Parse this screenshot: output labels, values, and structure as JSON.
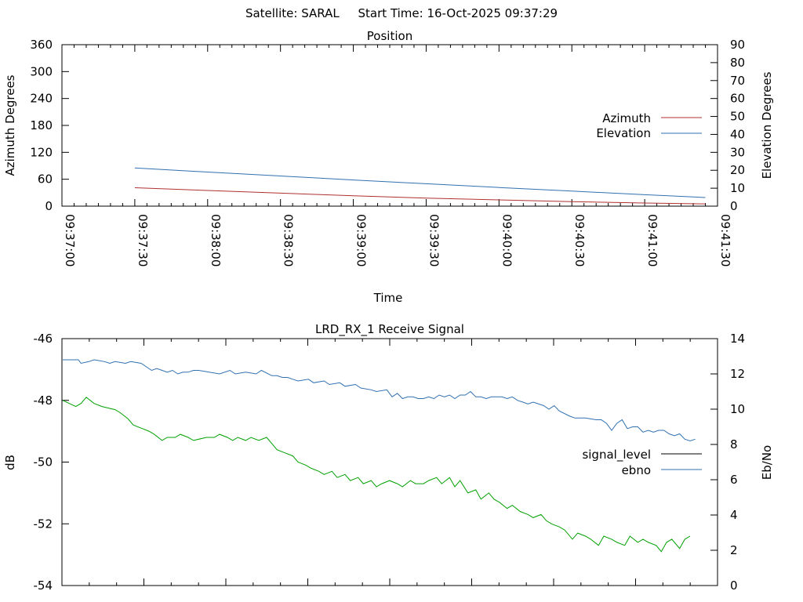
{
  "header": {
    "title": "Satellite: SARAL     Start Time: 16-Oct-2025 09:37:29"
  },
  "colors": {
    "azimuth": "#b03030",
    "elevation": "#3070b0",
    "signal_level": "#000000",
    "signal_line_drawn": "#00a000",
    "ebno": "#3070b0",
    "axis": "#000000"
  },
  "chart_data": [
    {
      "type": "line",
      "title": "Position",
      "xlabel": "Time",
      "ylabel": "Azimuth Degrees",
      "y2label": "Elevation Degrees",
      "xlim": [
        "09:37:00",
        "09:41:30"
      ],
      "ylim": [
        0,
        360
      ],
      "y2lim": [
        0,
        90
      ],
      "x_ticks": [
        "09:37:00",
        "09:37:30",
        "09:38:00",
        "09:38:30",
        "09:39:00",
        "09:39:30",
        "09:40:00",
        "09:40:30",
        "09:41:00",
        "09:41:30"
      ],
      "y_ticks": [
        "0",
        "60",
        "120",
        "180",
        "240",
        "300",
        "360"
      ],
      "y2_ticks": [
        "0",
        "10",
        "20",
        "30",
        "40",
        "50",
        "60",
        "70",
        "80",
        "90"
      ],
      "legend_position": "right",
      "series": [
        {
          "name": "Azimuth",
          "axis": "y",
          "x": [
            "09:37:30",
            "09:38:00",
            "09:38:30",
            "09:39:00",
            "09:39:30",
            "09:40:00",
            "09:40:30",
            "09:41:00",
            "09:41:25"
          ],
          "values": [
            41,
            35,
            29,
            23,
            18,
            14,
            10,
            7,
            5
          ]
        },
        {
          "name": "Elevation",
          "axis": "y2",
          "x": [
            "09:37:30",
            "09:38:00",
            "09:38:30",
            "09:39:00",
            "09:39:30",
            "09:40:00",
            "09:40:30",
            "09:41:00",
            "09:41:25"
          ],
          "values": [
            21.3,
            19.0,
            16.8,
            14.6,
            12.5,
            10.4,
            8.4,
            6.4,
            4.8
          ]
        }
      ]
    },
    {
      "type": "line",
      "title": "LRD_RX_1 Receive Signal",
      "ylabel": "dB",
      "y2label": "Eb/No",
      "xlim": [
        0,
        240
      ],
      "ylim": [
        -54,
        -46
      ],
      "y2lim": [
        0,
        14
      ],
      "y_ticks": [
        "-46",
        "-48",
        "-50",
        "-52",
        "-54"
      ],
      "y2_ticks": [
        "0",
        "2",
        "4",
        "6",
        "8",
        "10",
        "12",
        "14"
      ],
      "legend_position": "right",
      "series": [
        {
          "name": "signal_level",
          "axis": "y",
          "x": [
            0,
            5,
            7,
            9,
            12,
            15,
            20,
            22,
            25,
            27,
            30,
            33,
            35,
            38,
            40,
            43,
            45,
            48,
            50,
            55,
            58,
            60,
            63,
            65,
            67,
            70,
            72,
            75,
            78,
            80,
            82,
            85,
            88,
            90,
            93,
            95,
            98,
            100,
            103,
            105,
            108,
            110,
            113,
            115,
            118,
            120,
            122,
            125,
            128,
            130,
            133,
            135,
            138,
            140,
            143,
            145,
            148,
            150,
            152,
            155,
            158,
            160,
            163,
            165,
            167,
            170,
            172,
            175,
            178,
            180,
            183,
            185,
            187,
            190,
            192,
            195,
            197,
            200,
            202,
            205,
            207,
            210,
            212,
            215,
            217,
            220,
            222,
            224,
            227,
            229,
            231,
            233,
            236,
            238,
            240
          ],
          "values": [
            -48.0,
            -48.2,
            -48.1,
            -47.9,
            -48.1,
            -48.2,
            -48.3,
            -48.4,
            -48.6,
            -48.8,
            -48.9,
            -49.0,
            -49.1,
            -49.3,
            -49.2,
            -49.2,
            -49.1,
            -49.2,
            -49.3,
            -49.2,
            -49.2,
            -49.1,
            -49.2,
            -49.3,
            -49.2,
            -49.3,
            -49.2,
            -49.3,
            -49.2,
            -49.4,
            -49.6,
            -49.7,
            -49.8,
            -50.0,
            -50.1,
            -50.2,
            -50.3,
            -50.4,
            -50.3,
            -50.5,
            -50.4,
            -50.6,
            -50.5,
            -50.7,
            -50.6,
            -50.8,
            -50.7,
            -50.6,
            -50.7,
            -50.8,
            -50.6,
            -50.7,
            -50.7,
            -50.6,
            -50.5,
            -50.7,
            -50.5,
            -50.8,
            -50.6,
            -51.0,
            -50.9,
            -51.2,
            -51.0,
            -51.2,
            -51.3,
            -51.5,
            -51.4,
            -51.6,
            -51.7,
            -51.8,
            -51.7,
            -51.9,
            -52.0,
            -52.1,
            -52.2,
            -52.5,
            -52.3,
            -52.4,
            -52.5,
            -52.7,
            -52.4,
            -52.5,
            -52.6,
            -52.7,
            -52.4,
            -52.6,
            -52.5,
            -52.6,
            -52.7,
            -52.9,
            -52.6,
            -52.5,
            -52.8,
            -52.5,
            -52.4
          ]
        },
        {
          "name": "ebno",
          "axis": "y2",
          "x": [
            0,
            6,
            7,
            10,
            12,
            16,
            18,
            20,
            24,
            26,
            30,
            32,
            34,
            36,
            38,
            40,
            42,
            44,
            46,
            48,
            50,
            52,
            56,
            60,
            64,
            66,
            70,
            74,
            76,
            80,
            82,
            84,
            86,
            88,
            90,
            94,
            96,
            100,
            102,
            106,
            108,
            112,
            114,
            118,
            120,
            124,
            126,
            128,
            130,
            132,
            134,
            136,
            138,
            140,
            142,
            144,
            146,
            148,
            150,
            152,
            154,
            156,
            158,
            160,
            162,
            164,
            166,
            168,
            170,
            172,
            174,
            176,
            178,
            180,
            184,
            186,
            188,
            190,
            194,
            196,
            200,
            204,
            206,
            208,
            210,
            212,
            214,
            216,
            218,
            220,
            222,
            224,
            226,
            228,
            230,
            232,
            234,
            236,
            238,
            240,
            242
          ],
          "values": [
            12.8,
            12.8,
            12.6,
            12.7,
            12.8,
            12.7,
            12.6,
            12.7,
            12.6,
            12.7,
            12.6,
            12.4,
            12.2,
            12.3,
            12.2,
            12.1,
            12.2,
            12.0,
            12.1,
            12.1,
            12.2,
            12.2,
            12.1,
            12.0,
            12.2,
            12.0,
            12.1,
            12.0,
            12.2,
            11.9,
            11.9,
            11.8,
            11.8,
            11.7,
            11.6,
            11.7,
            11.5,
            11.6,
            11.4,
            11.5,
            11.3,
            11.4,
            11.2,
            11.1,
            11.0,
            11.1,
            10.7,
            10.9,
            10.6,
            10.7,
            10.7,
            10.6,
            10.6,
            10.7,
            10.6,
            10.8,
            10.7,
            10.8,
            10.6,
            10.8,
            10.8,
            11.0,
            10.7,
            10.7,
            10.6,
            10.7,
            10.7,
            10.7,
            10.6,
            10.7,
            10.5,
            10.4,
            10.3,
            10.4,
            10.2,
            10.0,
            10.2,
            9.9,
            9.6,
            9.5,
            9.5,
            9.4,
            9.4,
            9.2,
            8.8,
            9.2,
            9.4,
            8.9,
            9.0,
            9.0,
            8.7,
            8.8,
            8.7,
            8.8,
            8.8,
            8.6,
            8.5,
            8.6,
            8.3,
            8.2,
            8.3
          ]
        }
      ]
    }
  ]
}
